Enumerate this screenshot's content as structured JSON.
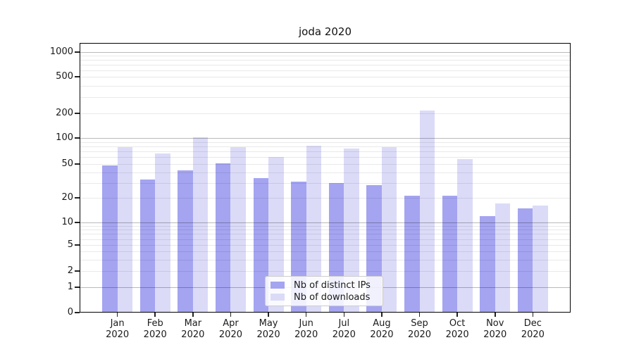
{
  "chart_data": {
    "type": "bar",
    "title": "joda 2020",
    "categories": [
      "Jan",
      "Feb",
      "Mar",
      "Apr",
      "May",
      "Jun",
      "Jul",
      "Aug",
      "Sep",
      "Oct",
      "Nov",
      "Dec"
    ],
    "year_label": "2020",
    "series": [
      {
        "name": "Nb of distinct IPs",
        "color": "#a4a4f1",
        "values": [
          48,
          33,
          42,
          51,
          34,
          31,
          30,
          28,
          21,
          21,
          12,
          15
        ]
      },
      {
        "name": "Nb of downloads",
        "color": "#dbdbf8",
        "values": [
          78,
          66,
          102,
          78,
          60,
          81,
          76,
          78,
          214,
          57,
          17,
          16
        ]
      }
    ],
    "y_ticks": [
      0,
      1,
      2,
      5,
      10,
      20,
      50,
      100,
      200,
      500,
      1000
    ],
    "y_scale": "symlog",
    "ylim": [
      0,
      1000
    ],
    "grid": {
      "major_values": [
        1,
        10,
        100,
        1000
      ],
      "minor_multipliers": [
        2,
        3,
        4,
        5,
        6,
        7,
        8,
        9
      ],
      "minor_decades": [
        1,
        10,
        100
      ]
    },
    "legend": {
      "position": "inside-bottom-center"
    },
    "axis_calibration": {
      "anchors": [
        [
          0,
          444
        ],
        [
          1,
          408
        ],
        [
          2,
          385
        ],
        [
          5,
          348
        ],
        [
          10,
          316
        ],
        [
          20,
          281
        ],
        [
          50,
          233
        ],
        [
          100,
          196
        ],
        [
          200,
          161
        ],
        [
          500,
          109
        ],
        [
          1000,
          74
        ]
      ]
    }
  },
  "colors": {
    "spine": "#000000",
    "text": "#1a1a1a",
    "major_grid": "#b9b9b9",
    "minor_grid": "#e9e9e9",
    "legend_border": "#cccccc"
  }
}
